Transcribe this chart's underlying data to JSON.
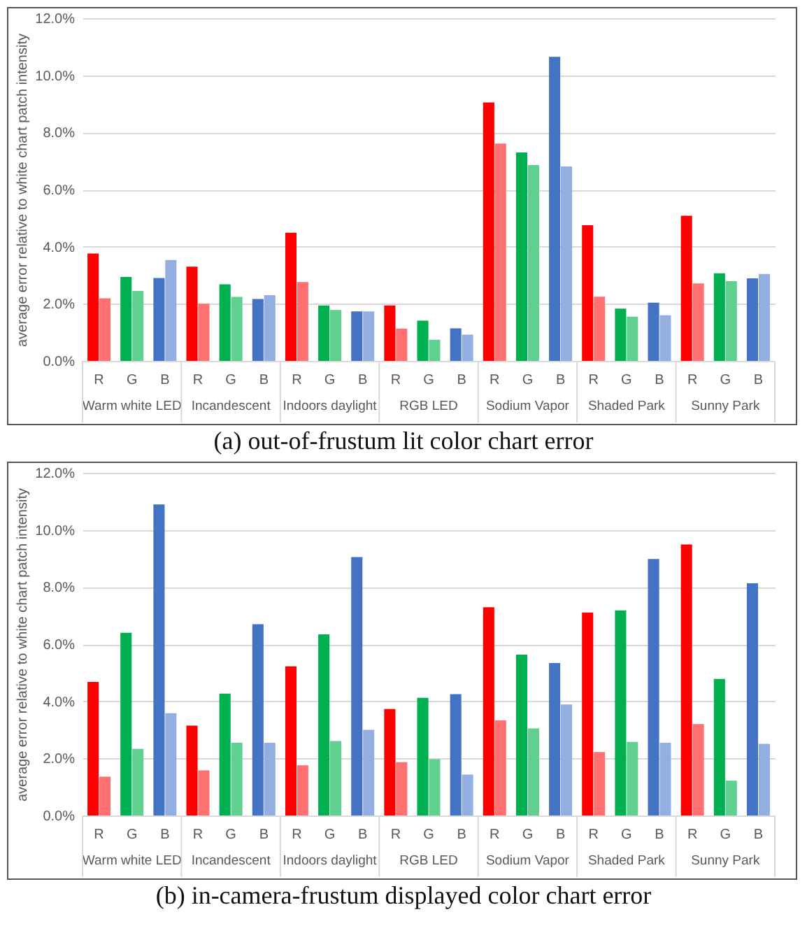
{
  "chart_data": [
    {
      "type": "bar",
      "title": "(a) out-of-frustum lit color chart error",
      "ylabel": "average error relative to white chart patch intensity",
      "categories": [
        "R",
        "G",
        "B",
        "R",
        "G",
        "B",
        "R",
        "G",
        "B",
        "R",
        "G",
        "B",
        "R",
        "G",
        "B",
        "R",
        "G",
        "B",
        "R",
        "G",
        "B"
      ],
      "annotations": [
        "Warm white LED",
        "Incandescent",
        "Indoors daylight",
        "RGB LED",
        "Sodium Vapor",
        "Shaded Park",
        "Sunny Park"
      ],
      "series": [
        {
          "colors": [
            "#ff0000",
            "#00b050",
            "#4472c4",
            "#ff0000",
            "#00b050",
            "#4472c4",
            "#ff0000",
            "#00b050",
            "#4472c4",
            "#ff0000",
            "#00b050",
            "#4472c4",
            "#ff0000",
            "#00b050",
            "#4472c4",
            "#ff0000",
            "#00b050",
            "#4472c4",
            "#ff0000",
            "#00b050",
            "#4472c4"
          ],
          "values": [
            3.76,
            2.94,
            2.9,
            3.3,
            2.68,
            2.17,
            4.49,
            1.94,
            1.73,
            1.94,
            1.41,
            1.14,
            9.05,
            7.3,
            10.65,
            4.75,
            1.83,
            2.04,
            5.08,
            3.07,
            2.89
          ]
        },
        {
          "colors": [
            "#ff7070",
            "#5fd08f",
            "#93aee0",
            "#ff7070",
            "#5fd08f",
            "#93aee0",
            "#ff7070",
            "#5fd08f",
            "#93aee0",
            "#ff7070",
            "#5fd08f",
            "#93aee0",
            "#ff7070",
            "#5fd08f",
            "#93aee0",
            "#ff7070",
            "#5fd08f",
            "#93aee0",
            "#ff7070",
            "#5fd08f",
            "#93aee0"
          ],
          "values": [
            2.19,
            2.45,
            3.53,
            2.0,
            2.24,
            2.3,
            2.76,
            1.78,
            1.73,
            1.13,
            0.74,
            0.92,
            7.61,
            6.86,
            6.81,
            2.25,
            1.55,
            1.6,
            2.71,
            2.79,
            3.04
          ]
        }
      ],
      "ylim": [
        0,
        12
      ],
      "yticks": [
        {
          "value": 0,
          "label": "0.0%"
        },
        {
          "value": 2,
          "label": "2.0%"
        },
        {
          "value": 4,
          "label": "4.0%"
        },
        {
          "value": 6,
          "label": "6.0%"
        },
        {
          "value": 8,
          "label": "8.0%"
        },
        {
          "value": 10,
          "label": "10.0%"
        },
        {
          "value": 12,
          "label": "12.0%"
        }
      ],
      "grid": "y"
    },
    {
      "type": "bar",
      "title": "(b) in-camera-frustum displayed color chart error",
      "ylabel": "average error relative to white chart patch intensity",
      "categories": [
        "R",
        "G",
        "B",
        "R",
        "G",
        "B",
        "R",
        "G",
        "B",
        "R",
        "G",
        "B",
        "R",
        "G",
        "B",
        "R",
        "G",
        "B",
        "R",
        "G",
        "B"
      ],
      "annotations": [
        "Warm white LED",
        "Incandescent",
        "Indoors daylight",
        "RGB LED",
        "Sodium Vapor",
        "Shaded Park",
        "Sunny Park"
      ],
      "series": [
        {
          "colors": [
            "#ff0000",
            "#00b050",
            "#4472c4",
            "#ff0000",
            "#00b050",
            "#4472c4",
            "#ff0000",
            "#00b050",
            "#4472c4",
            "#ff0000",
            "#00b050",
            "#4472c4",
            "#ff0000",
            "#00b050",
            "#4472c4",
            "#ff0000",
            "#00b050",
            "#4472c4",
            "#ff0000",
            "#00b050",
            "#4472c4"
          ],
          "values": [
            4.68,
            6.4,
            10.89,
            3.15,
            4.27,
            6.7,
            5.22,
            6.34,
            9.05,
            3.73,
            4.12,
            4.25,
            7.29,
            5.63,
            5.34,
            7.11,
            7.18,
            8.98,
            9.49,
            4.78,
            8.13
          ]
        },
        {
          "colors": [
            "#ff7070",
            "#5fd08f",
            "#93aee0",
            "#ff7070",
            "#5fd08f",
            "#93aee0",
            "#ff7070",
            "#5fd08f",
            "#93aee0",
            "#ff7070",
            "#5fd08f",
            "#93aee0",
            "#ff7070",
            "#5fd08f",
            "#93aee0",
            "#ff7070",
            "#5fd08f",
            "#93aee0",
            "#ff7070",
            "#5fd08f",
            "#93aee0"
          ],
          "values": [
            1.36,
            2.33,
            3.58,
            1.58,
            2.55,
            2.55,
            1.76,
            2.61,
            3.0,
            1.87,
            1.97,
            1.43,
            3.33,
            3.05,
            3.89,
            2.22,
            2.58,
            2.55,
            3.2,
            1.22,
            2.51
          ]
        }
      ],
      "ylim": [
        0,
        12
      ],
      "yticks": [
        {
          "value": 0,
          "label": "0.0%"
        },
        {
          "value": 2,
          "label": "2.0%"
        },
        {
          "value": 4,
          "label": "4.0%"
        },
        {
          "value": 6,
          "label": "6.0%"
        },
        {
          "value": 8,
          "label": "8.0%"
        },
        {
          "value": 10,
          "label": "10.0%"
        },
        {
          "value": 12,
          "label": "12.0%"
        }
      ],
      "grid": "y"
    }
  ]
}
